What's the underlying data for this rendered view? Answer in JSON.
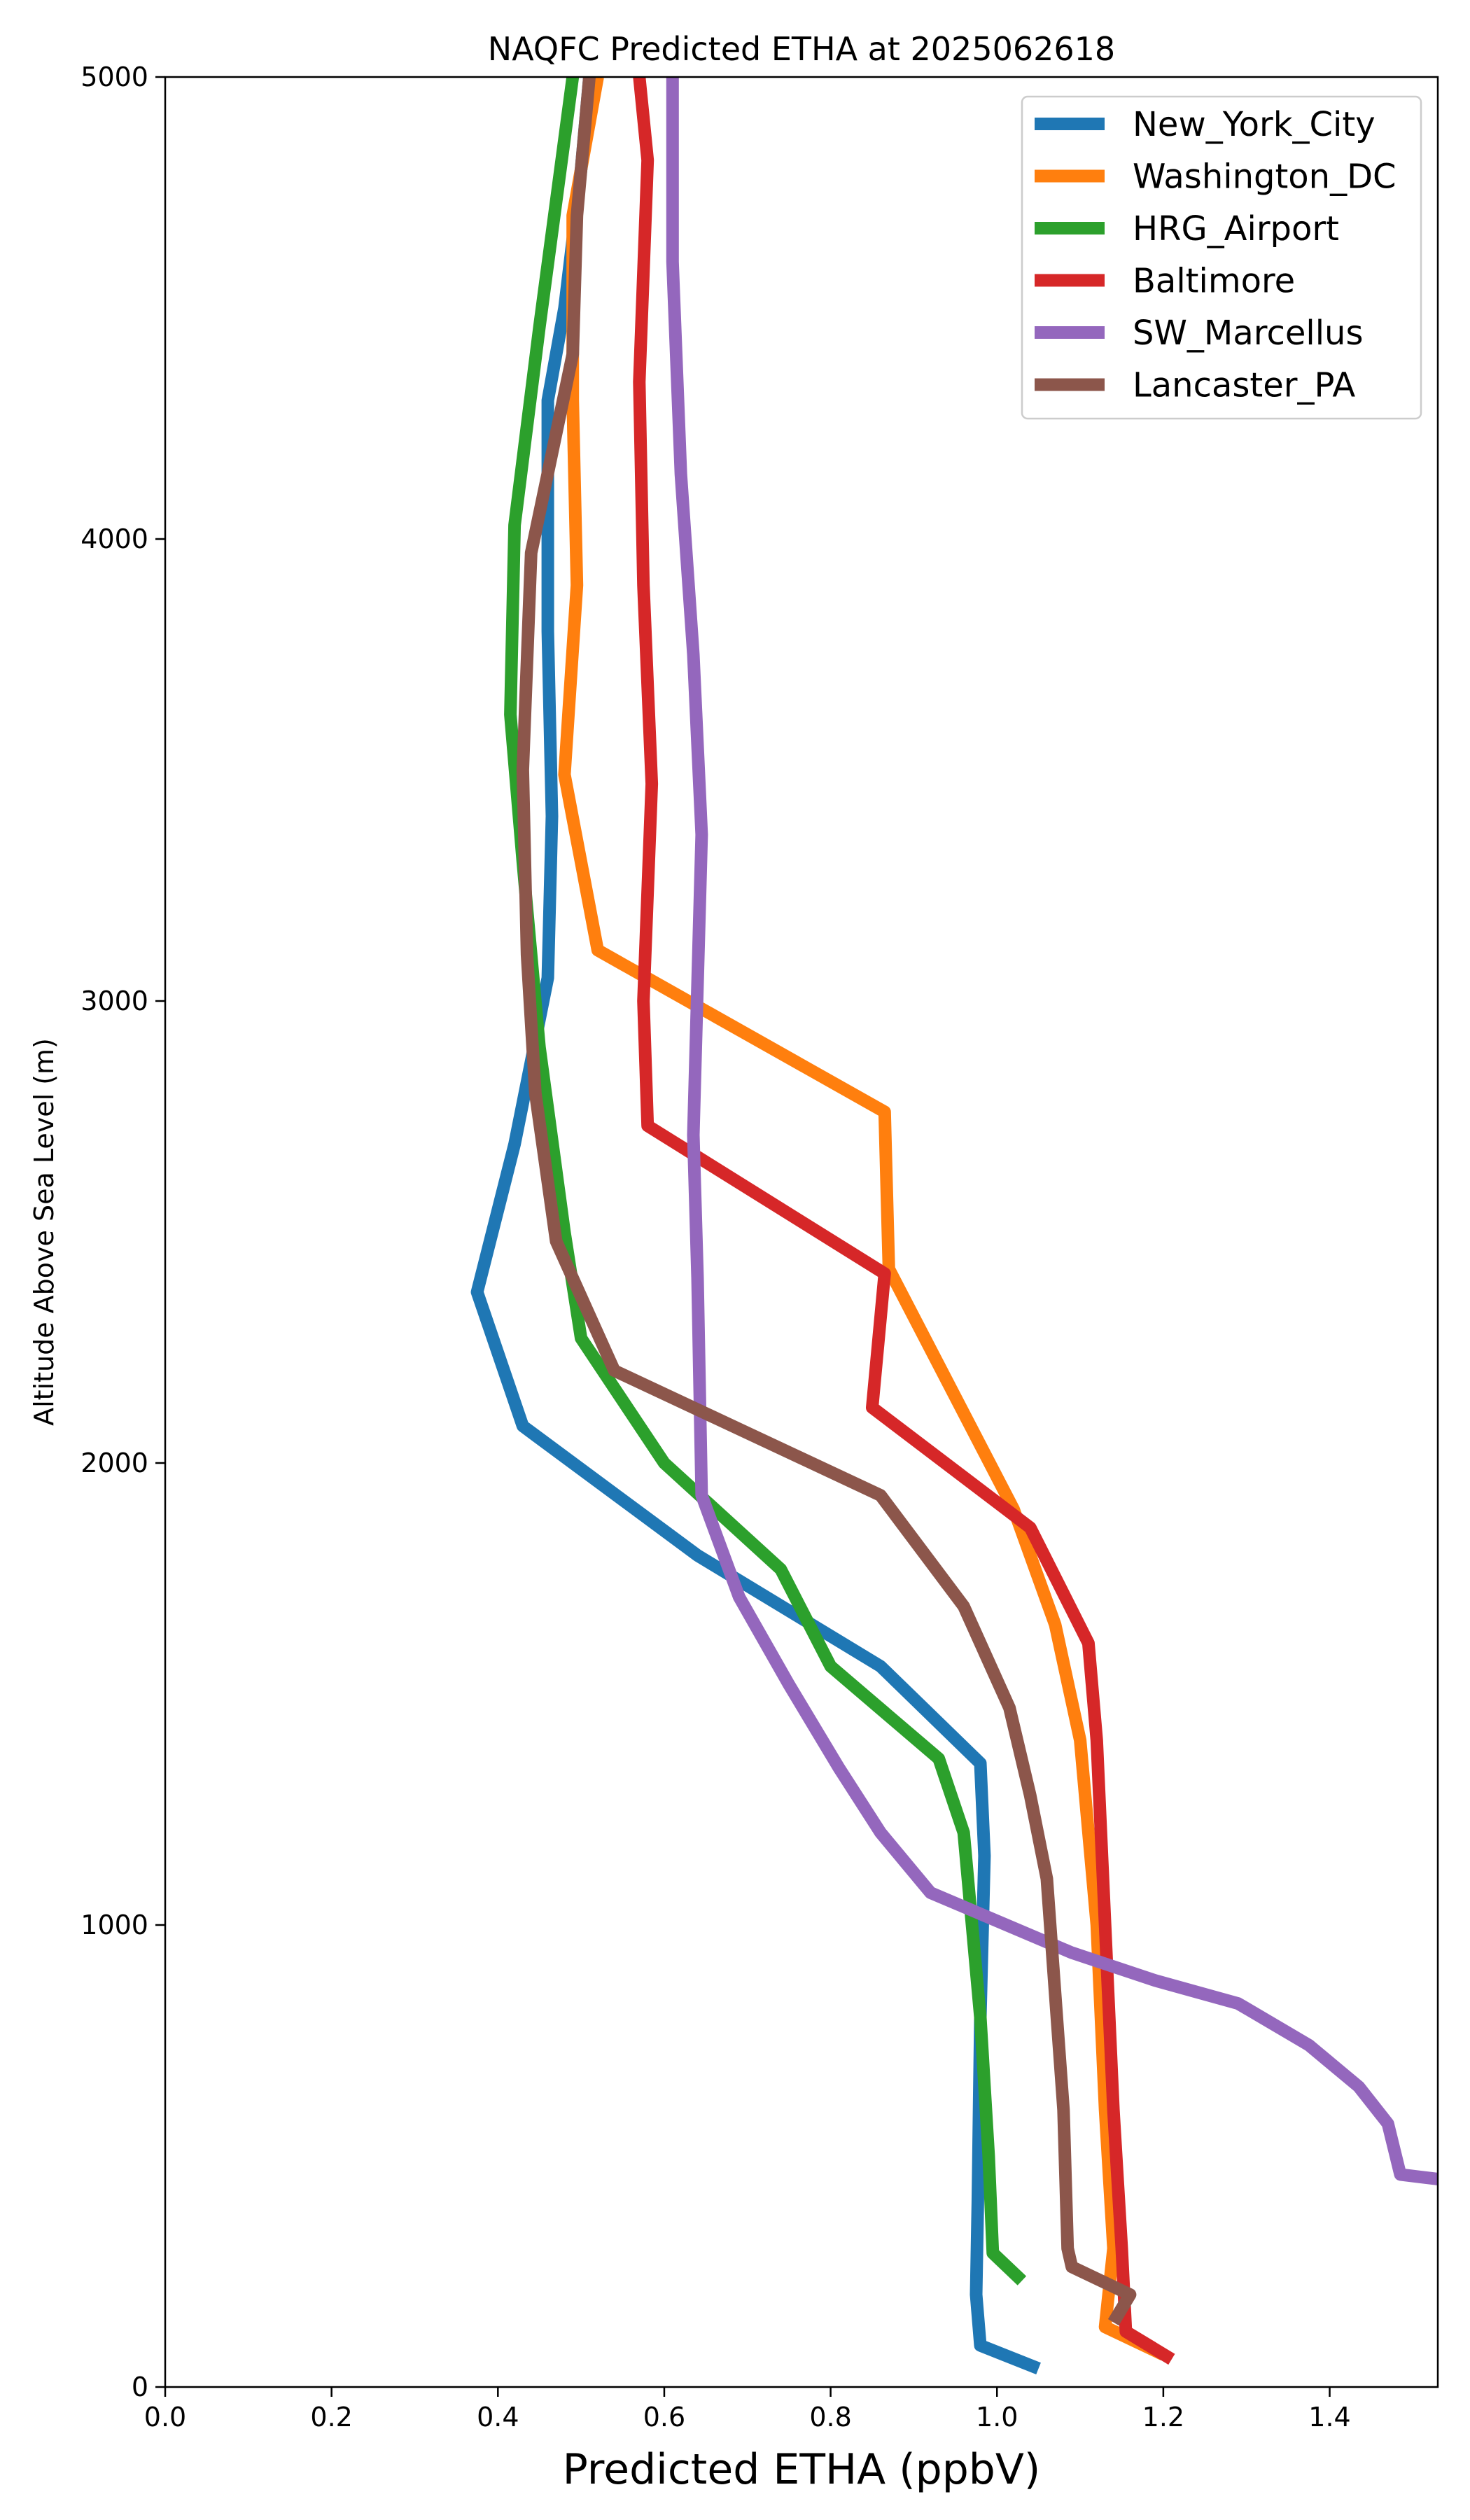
{
  "chart_data": {
    "type": "line",
    "title": "NAQFC Predicted ETHA at 2025062618",
    "xlabel": "Predicted ETHA (ppbV)",
    "ylabel": "Altitude Above Sea Level (m)",
    "xlim": [
      0,
      1.53
    ],
    "ylim": [
      0,
      5000
    ],
    "xticks": [
      0.0,
      0.2,
      0.4,
      0.6,
      0.8,
      1.0,
      1.2,
      1.4
    ],
    "yticks": [
      0,
      1000,
      2000,
      3000,
      4000,
      5000
    ],
    "xtick_labels": [
      "0.0",
      "0.2",
      "0.4",
      "0.6",
      "0.8",
      "1.0",
      "1.2",
      "1.4"
    ],
    "ytick_labels": [
      "0",
      "1000",
      "2000",
      "3000",
      "4000",
      "5000"
    ],
    "grid": false,
    "legend_position": "top-right",
    "series": [
      {
        "name": "New_York_City",
        "color": "#1f77b4",
        "points": [
          [
            1.05,
            40
          ],
          [
            0.98,
            90
          ],
          [
            0.975,
            200
          ],
          [
            0.977,
            400
          ],
          [
            0.98,
            800
          ],
          [
            0.985,
            1150
          ],
          [
            0.98,
            1350
          ],
          [
            0.86,
            1560
          ],
          [
            0.64,
            1800
          ],
          [
            0.43,
            2080
          ],
          [
            0.375,
            2370
          ],
          [
            0.42,
            2690
          ],
          [
            0.46,
            3050
          ],
          [
            0.465,
            3400
          ],
          [
            0.46,
            3800
          ],
          [
            0.46,
            4300
          ],
          [
            0.48,
            4500
          ],
          [
            0.5,
            4800
          ],
          [
            0.51,
            5000
          ]
        ]
      },
      {
        "name": "Washington_DC",
        "color": "#ff7f0e",
        "points": [
          [
            1.2,
            70
          ],
          [
            1.13,
            130
          ],
          [
            1.14,
            300
          ],
          [
            1.13,
            600
          ],
          [
            1.12,
            1000
          ],
          [
            1.1,
            1400
          ],
          [
            1.07,
            1650
          ],
          [
            1.02,
            1900
          ],
          [
            0.87,
            2420
          ],
          [
            0.865,
            2760
          ],
          [
            0.52,
            3110
          ],
          [
            0.48,
            3490
          ],
          [
            0.495,
            3900
          ],
          [
            0.49,
            4300
          ],
          [
            0.49,
            4700
          ],
          [
            0.52,
            5000
          ]
        ]
      },
      {
        "name": "HRG_Airport",
        "color": "#2ca02c",
        "points": [
          [
            1.03,
            230
          ],
          [
            0.995,
            290
          ],
          [
            0.99,
            500
          ],
          [
            0.98,
            800
          ],
          [
            0.97,
            1000
          ],
          [
            0.96,
            1200
          ],
          [
            0.93,
            1360
          ],
          [
            0.8,
            1560
          ],
          [
            0.74,
            1770
          ],
          [
            0.6,
            2000
          ],
          [
            0.5,
            2270
          ],
          [
            0.48,
            2500
          ],
          [
            0.45,
            2900
          ],
          [
            0.43,
            3300
          ],
          [
            0.415,
            3620
          ],
          [
            0.42,
            4030
          ],
          [
            0.45,
            4460
          ],
          [
            0.49,
            5000
          ]
        ]
      },
      {
        "name": "Baltimore",
        "color": "#d62728",
        "points": [
          [
            1.21,
            60
          ],
          [
            1.155,
            120
          ],
          [
            1.15,
            300
          ],
          [
            1.14,
            600
          ],
          [
            1.13,
            1000
          ],
          [
            1.12,
            1400
          ],
          [
            1.11,
            1610
          ],
          [
            1.04,
            1860
          ],
          [
            0.85,
            2120
          ],
          [
            0.865,
            2410
          ],
          [
            0.58,
            2730
          ],
          [
            0.575,
            3000
          ],
          [
            0.585,
            3470
          ],
          [
            0.575,
            3900
          ],
          [
            0.57,
            4340
          ],
          [
            0.58,
            4820
          ],
          [
            0.57,
            5000
          ]
        ]
      },
      {
        "name": "SW_Marcellus",
        "color": "#9467bd",
        "points": [
          [
            1.53,
            450
          ],
          [
            1.485,
            460
          ],
          [
            1.47,
            570
          ],
          [
            1.435,
            650
          ],
          [
            1.375,
            740
          ],
          [
            1.29,
            830
          ],
          [
            1.19,
            880
          ],
          [
            1.09,
            940
          ],
          [
            0.92,
            1070
          ],
          [
            0.86,
            1200
          ],
          [
            0.81,
            1340
          ],
          [
            0.75,
            1520
          ],
          [
            0.69,
            1710
          ],
          [
            0.645,
            1930
          ],
          [
            0.64,
            2400
          ],
          [
            0.635,
            2710
          ],
          [
            0.645,
            3360
          ],
          [
            0.635,
            3750
          ],
          [
            0.62,
            4140
          ],
          [
            0.61,
            4600
          ],
          [
            0.61,
            5000
          ]
        ]
      },
      {
        "name": "Lancaster_PA",
        "color": "#8c564b",
        "points": [
          [
            1.14,
            140
          ],
          [
            1.16,
            200
          ],
          [
            1.09,
            260
          ],
          [
            1.085,
            300
          ],
          [
            1.08,
            600
          ],
          [
            1.07,
            850
          ],
          [
            1.06,
            1100
          ],
          [
            1.04,
            1280
          ],
          [
            1.015,
            1470
          ],
          [
            0.96,
            1690
          ],
          [
            0.86,
            1930
          ],
          [
            0.54,
            2200
          ],
          [
            0.47,
            2480
          ],
          [
            0.445,
            2800
          ],
          [
            0.435,
            3100
          ],
          [
            0.43,
            3500
          ],
          [
            0.44,
            3970
          ],
          [
            0.49,
            4400
          ],
          [
            0.495,
            4700
          ],
          [
            0.51,
            5000
          ]
        ]
      }
    ]
  }
}
